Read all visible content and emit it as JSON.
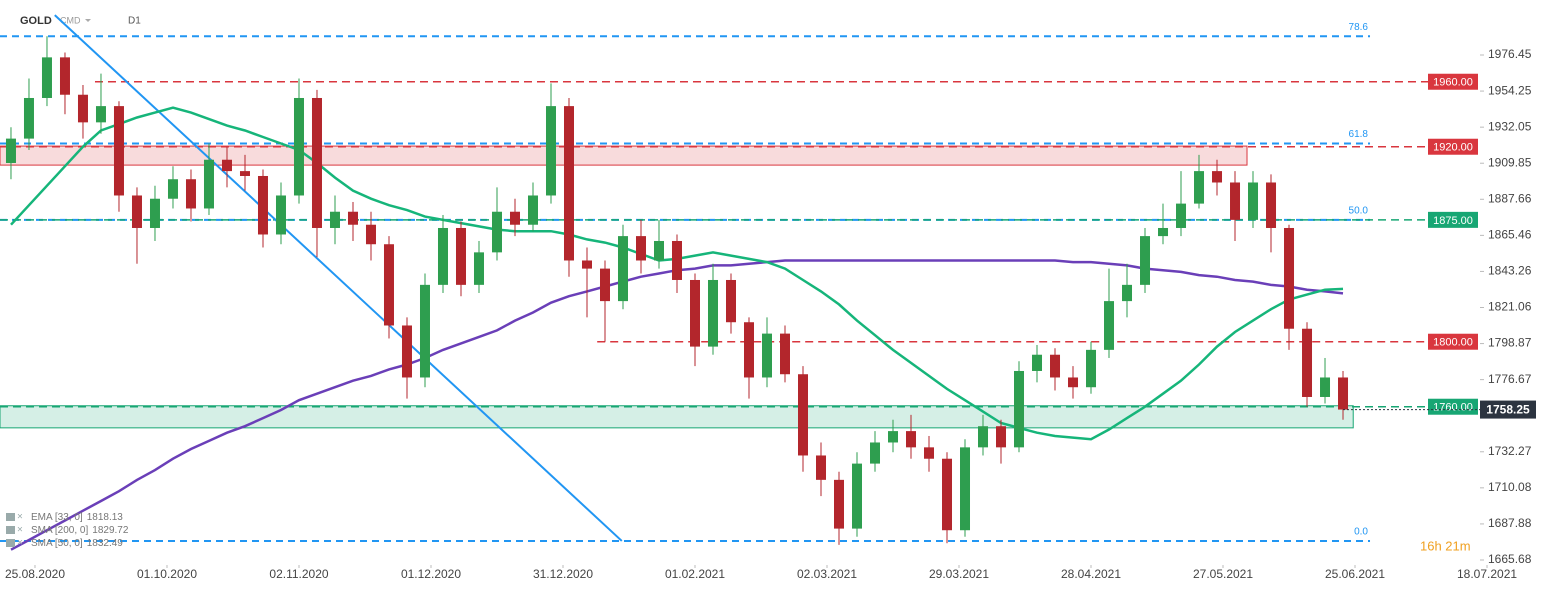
{
  "chart_data": {
    "type": "candlestick",
    "symbol": "GOLD",
    "market": "CMD",
    "timeframe": "D1",
    "xlim": [
      -5.83,
      251.83
    ],
    "xticks": [
      {
        "value": 0,
        "label": "25.08.2020"
      },
      {
        "value": 22,
        "label": "01.10.2020"
      },
      {
        "value": 44,
        "label": "02.11.2020"
      },
      {
        "value": 66,
        "label": "01.12.2020"
      },
      {
        "value": 88,
        "label": "31.12.2020"
      },
      {
        "value": 110,
        "label": "01.02.2021"
      },
      {
        "value": 132,
        "label": "02.03.2021"
      },
      {
        "value": 154,
        "label": "29.03.2021"
      },
      {
        "value": 176,
        "label": "28.04.2021"
      },
      {
        "value": 198,
        "label": "27.05.2021"
      },
      {
        "value": 220,
        "label": "25.06.2021"
      },
      {
        "value": 242,
        "label": "18.07.2021"
      }
    ],
    "ylim": [
      1662.6,
      2010.3
    ],
    "yticks": [
      1976.45,
      1954.25,
      1932.05,
      1909.85,
      1887.66,
      1865.46,
      1843.26,
      1821.06,
      1798.87,
      1776.67,
      1732.27,
      1710.08,
      1687.88,
      1665.68
    ],
    "up_color": "#2e9e4f",
    "down_color": "#b3262c",
    "x": [
      -4,
      -1,
      2,
      5,
      8,
      11,
      14,
      17,
      20,
      23,
      26,
      29,
      32,
      35,
      38,
      41,
      44,
      47,
      50,
      53,
      56,
      59,
      62,
      65,
      68,
      71,
      74,
      77,
      80,
      83,
      86,
      89,
      92,
      95,
      98,
      101,
      104,
      107,
      110,
      113,
      116,
      119,
      122,
      125,
      128,
      131,
      134,
      137,
      140,
      143,
      146,
      149,
      152,
      155,
      158,
      161,
      164,
      167,
      170,
      173,
      176,
      179,
      182,
      185,
      188,
      191,
      194,
      197,
      200,
      203,
      206,
      209,
      212,
      215,
      218
    ],
    "open": [
      1910,
      1925,
      1950,
      1975,
      1952,
      1935,
      1945,
      1890,
      1870,
      1888,
      1900,
      1882,
      1912,
      1905,
      1902,
      1866,
      1890,
      1950,
      1870,
      1880,
      1872,
      1860,
      1810,
      1778,
      1835,
      1870,
      1835,
      1855,
      1880,
      1872,
      1890,
      1945,
      1850,
      1845,
      1825,
      1865,
      1850,
      1862,
      1838,
      1797,
      1838,
      1812,
      1778,
      1805,
      1780,
      1730,
      1715,
      1685,
      1725,
      1738,
      1745,
      1735,
      1728,
      1684,
      1735,
      1748,
      1735,
      1782,
      1792,
      1778,
      1772,
      1795,
      1825,
      1835,
      1865,
      1870,
      1885,
      1905,
      1898,
      1875,
      1898,
      1870,
      1808,
      1766,
      1778
    ],
    "high": [
      1932,
      1962,
      1988,
      1978,
      1958,
      1965,
      1948,
      1895,
      1896,
      1908,
      1906,
      1922,
      1920,
      1915,
      1906,
      1898,
      1962,
      1955,
      1890,
      1886,
      1880,
      1865,
      1815,
      1842,
      1878,
      1874,
      1862,
      1895,
      1888,
      1898,
      1959,
      1950,
      1858,
      1850,
      1872,
      1875,
      1875,
      1866,
      1842,
      1848,
      1842,
      1815,
      1815,
      1810,
      1785,
      1738,
      1720,
      1732,
      1745,
      1752,
      1755,
      1742,
      1732,
      1740,
      1755,
      1752,
      1788,
      1798,
      1796,
      1785,
      1800,
      1845,
      1848,
      1870,
      1885,
      1905,
      1915,
      1912,
      1905,
      1905,
      1903,
      1872,
      1812,
      1790,
      1782
    ],
    "low": [
      1900,
      1918,
      1945,
      1940,
      1925,
      1928,
      1880,
      1848,
      1862,
      1882,
      1874,
      1878,
      1895,
      1893,
      1858,
      1860,
      1885,
      1852,
      1860,
      1862,
      1850,
      1802,
      1765,
      1772,
      1830,
      1828,
      1830,
      1850,
      1865,
      1868,
      1885,
      1840,
      1815,
      1800,
      1820,
      1842,
      1845,
      1830,
      1785,
      1792,
      1805,
      1765,
      1772,
      1775,
      1720,
      1705,
      1675,
      1680,
      1720,
      1732,
      1728,
      1720,
      1676,
      1680,
      1730,
      1725,
      1732,
      1775,
      1770,
      1765,
      1768,
      1790,
      1815,
      1830,
      1860,
      1865,
      1882,
      1890,
      1862,
      1870,
      1855,
      1795,
      1760,
      1762,
      1752
    ],
    "close": [
      1925,
      1950,
      1975,
      1952,
      1935,
      1945,
      1890,
      1870,
      1888,
      1900,
      1882,
      1912,
      1905,
      1902,
      1866,
      1890,
      1950,
      1870,
      1880,
      1872,
      1860,
      1810,
      1778,
      1835,
      1870,
      1835,
      1855,
      1880,
      1872,
      1890,
      1945,
      1850,
      1845,
      1825,
      1865,
      1850,
      1862,
      1838,
      1797,
      1838,
      1812,
      1778,
      1805,
      1780,
      1730,
      1715,
      1685,
      1725,
      1738,
      1745,
      1735,
      1728,
      1684,
      1735,
      1748,
      1735,
      1782,
      1792,
      1778,
      1772,
      1795,
      1825,
      1835,
      1865,
      1870,
      1885,
      1905,
      1898,
      1875,
      1898,
      1870,
      1808,
      1766,
      1778,
      1758.25
    ],
    "indicators": [
      {
        "name": "EMA [33, 0]",
        "last": 1818.13
      },
      {
        "name": "SMA [200, 0]",
        "last": 1829.72,
        "color": "#6a3fb8",
        "values": [
          1672,
          1678,
          1684,
          1690,
          1696,
          1702,
          1708,
          1715,
          1721,
          1728,
          1734,
          1739,
          1744,
          1748,
          1753,
          1758,
          1764,
          1768,
          1772,
          1776,
          1779,
          1783,
          1786,
          1790,
          1795,
          1799,
          1803,
          1807,
          1813,
          1818,
          1824,
          1828,
          1831,
          1834,
          1837,
          1840,
          1842,
          1844,
          1845,
          1847,
          1847,
          1848,
          1849,
          1850,
          1850,
          1850,
          1850,
          1850,
          1850,
          1850,
          1850,
          1850,
          1850,
          1850,
          1850,
          1850,
          1850,
          1850,
          1850,
          1849,
          1849,
          1848,
          1847,
          1845,
          1844,
          1843,
          1841,
          1840,
          1838,
          1837,
          1835,
          1834,
          1832,
          1831,
          1829.72
        ]
      },
      {
        "name": "SMA [50, 0]",
        "last": 1832.49,
        "color": "#16b57a",
        "values": [
          1872,
          1884,
          1896,
          1908,
          1920,
          1930,
          1934,
          1938,
          1941,
          1944,
          1941,
          1937,
          1933,
          1930,
          1926,
          1922,
          1918,
          1910,
          1901,
          1893,
          1888,
          1884,
          1881,
          1877,
          1875,
          1873,
          1871,
          1869,
          1868,
          1868,
          1868,
          1866,
          1863,
          1861,
          1858,
          1854,
          1850,
          1851,
          1853,
          1855,
          1853,
          1851,
          1849,
          1845,
          1838,
          1831,
          1823,
          1813,
          1804,
          1795,
          1787,
          1779,
          1771,
          1764,
          1757,
          1750,
          1747,
          1744,
          1742,
          1741,
          1740,
          1746,
          1753,
          1760,
          1768,
          1776,
          1786,
          1797,
          1806,
          1813,
          1820,
          1826,
          1829,
          1832,
          1832.49
        ]
      }
    ],
    "levels": [
      {
        "value": 1960,
        "label": "1960.00",
        "color": "#d9363e",
        "x_start": 10
      },
      {
        "value": 1920,
        "label": "1920.00",
        "color": "#d9363e",
        "x_start": -5.83
      },
      {
        "value": 1875,
        "label": "1875.00",
        "color": "#17a673",
        "x_start": -5.83
      },
      {
        "value": 1800,
        "label": "1800.00",
        "color": "#d9363e",
        "x_start": 93.7
      },
      {
        "value": 1760,
        "label": "1760.00",
        "color": "#17a673",
        "x_start": -5.83
      }
    ],
    "fib_levels": [
      {
        "value": 1988,
        "label": "78.6"
      },
      {
        "value": 1922,
        "label": "61.8"
      },
      {
        "value": 1875,
        "label": "50.0"
      },
      {
        "value": 1677.4,
        "label": "0.0"
      }
    ],
    "fib_color": "#2196f3",
    "fib_x_end": 222.5,
    "zones": [
      {
        "from": 1908.7,
        "to": 1920.4,
        "x_end": 202,
        "color": "#d9363e"
      },
      {
        "from": 1747,
        "to": 1760.6,
        "x_end": 219.7,
        "color": "#17a673"
      }
    ],
    "trendline": {
      "x": [
        3.3,
        97.8
      ],
      "y": [
        2001,
        1677.4
      ],
      "color": "#2196f3"
    },
    "timer": "16h 21m"
  }
}
